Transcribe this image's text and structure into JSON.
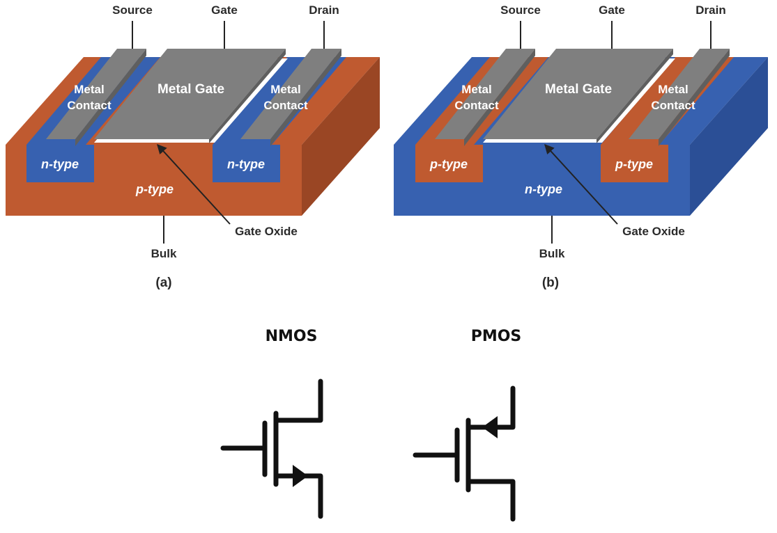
{
  "colors": {
    "n_region": "#3761b0",
    "n_region_dark": "#2b4f96",
    "p_region": "#bf5a30",
    "p_region_dark": "#9a4624",
    "metal": "#7f7f7f",
    "metal_dark": "#5f5f5f",
    "metal_light": "#9a9a9a",
    "oxide": "#ffffff",
    "symbol": "#111111",
    "leader": "#222222"
  },
  "nmos_device": {
    "source_label": "Source",
    "gate_label": "Gate",
    "drain_label": "Drain",
    "left_contact_line1": "Metal",
    "left_contact_line2": "Contact",
    "gate_metal_label": "Metal Gate",
    "right_contact_line1": "Metal",
    "right_contact_line2": "Contact",
    "left_well_label": "n-type",
    "right_well_label": "n-type",
    "substrate_label": "p-type",
    "oxide_label": "Gate Oxide",
    "bulk_label": "Bulk",
    "caption": "(a)"
  },
  "pmos_device": {
    "source_label": "Source",
    "gate_label": "Gate",
    "drain_label": "Drain",
    "left_contact_line1": "Metal",
    "left_contact_line2": "Contact",
    "gate_metal_label": "Metal Gate",
    "right_contact_line1": "Metal",
    "right_contact_line2": "Contact",
    "left_well_label": "p-type",
    "right_well_label": "p-type",
    "substrate_label": "n-type",
    "oxide_label": "Gate Oxide",
    "bulk_label": "Bulk",
    "caption": "(b)"
  },
  "symbols": {
    "nmos_title": "NMOS",
    "pmos_title": "PMOS"
  },
  "icons": {
    "nmos_symbol": "nmos-transistor-symbol",
    "pmos_symbol": "pmos-transistor-symbol"
  }
}
